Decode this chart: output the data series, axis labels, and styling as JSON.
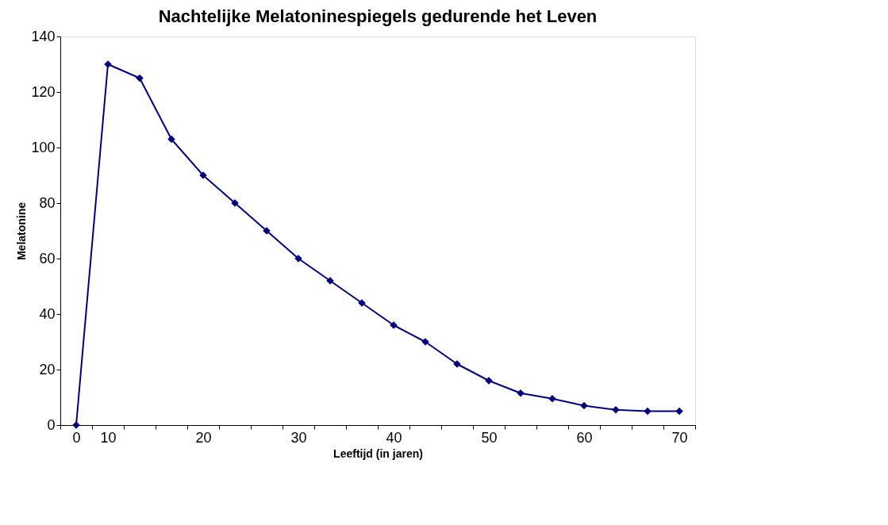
{
  "chart_data": {
    "type": "line",
    "title": "Nachtelijke Melatoninespiegels gedurende het Leven",
    "xlabel": "Leeftijd (in jaren)",
    "ylabel": "Melatonine",
    "categories": [
      "0",
      "10",
      null,
      null,
      "20",
      null,
      null,
      "30",
      null,
      null,
      "40",
      null,
      null,
      "50",
      null,
      null,
      "60",
      null,
      null,
      "70"
    ],
    "series": [
      {
        "color": "#000080",
        "values": [
          0,
          130,
          125,
          103,
          90,
          80,
          70,
          60,
          52,
          44,
          36,
          30,
          22,
          16,
          11.5,
          9.5,
          7,
          5.5,
          5,
          5
        ]
      }
    ],
    "ylim": [
      0,
      140
    ],
    "yticks": [
      0,
      20,
      40,
      60,
      80,
      100,
      120,
      140
    ],
    "grid": false,
    "marker": "diamond",
    "line_style": "solid"
  }
}
